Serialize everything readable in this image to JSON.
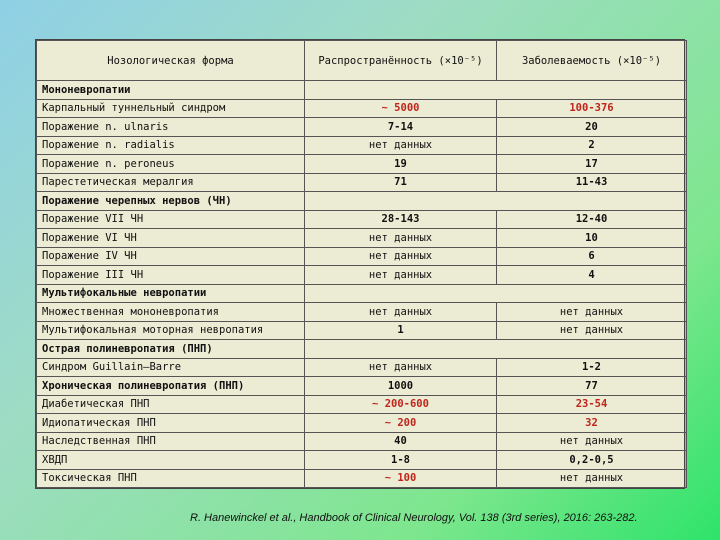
{
  "table": {
    "header": [
      "Нозологическая форма",
      "Распространённость (×10⁻⁵)",
      "Заболеваемость (×10⁻⁵)"
    ],
    "rows": [
      {
        "type": "section",
        "label": "Мононевропатии"
      },
      {
        "type": "row",
        "label": "Карпальный туннельный синдром",
        "prev": "~ 5000",
        "inc": "100-376",
        "bold": true,
        "prevRed": true,
        "incRed": true
      },
      {
        "type": "row",
        "label": "Поражение n. ulnaris",
        "prev": "7-14",
        "inc": "20",
        "bold": true
      },
      {
        "type": "row",
        "label": "Поражение n. radialis",
        "prev": "нет данных",
        "inc": "2",
        "bold": true,
        "prevNormal": true
      },
      {
        "type": "row",
        "label": "Поражение n. peroneus",
        "prev": "19",
        "inc": "17",
        "bold": true
      },
      {
        "type": "row",
        "label": "Парестетическая мералгия",
        "prev": "71",
        "inc": "11-43",
        "bold": true
      },
      {
        "type": "section",
        "label": "Поражение черепных нервов (ЧН)"
      },
      {
        "type": "row",
        "label": "Поражение VII ЧН",
        "prev": "28-143",
        "inc": "12-40",
        "bold": true
      },
      {
        "type": "row",
        "label": "Поражение VI ЧН",
        "prev": "нет данных",
        "inc": "10",
        "bold": true,
        "prevNormal": true
      },
      {
        "type": "row",
        "label": "Поражение IV ЧН",
        "prev": "нет данных",
        "inc": "6",
        "bold": true,
        "prevNormal": true
      },
      {
        "type": "row",
        "label": "Поражение III ЧН",
        "prev": "нет данных",
        "inc": "4",
        "bold": true,
        "prevNormal": true
      },
      {
        "type": "section",
        "label": "Мультифокальные невропатии"
      },
      {
        "type": "row",
        "label": "Множественная мононевропатия",
        "prev": "нет данных",
        "inc": "нет данных"
      },
      {
        "type": "row",
        "label": "Мультифокальная моторная невропатия",
        "prev": "1",
        "inc": "нет данных",
        "prevBold": true
      },
      {
        "type": "section",
        "label": "Острая полиневропатия (ПНП)"
      },
      {
        "type": "row",
        "label": "Синдром Guillain–Barre",
        "prev": "нет данных",
        "inc": "1-2",
        "incBold": true
      },
      {
        "type": "row",
        "label": "Хроническая полиневропатия (ПНП)",
        "prev": "1000",
        "inc": "77",
        "bold": true,
        "labelBold": true
      },
      {
        "type": "row",
        "label": "Диабетическая ПНП",
        "prev": "~ 200-600",
        "inc": "23-54",
        "bold": true,
        "prevRed": true,
        "incRed": true
      },
      {
        "type": "row",
        "label": "Идиопатическая ПНП",
        "prev": "~ 200",
        "inc": "32",
        "bold": true,
        "prevRed": true,
        "incRed": true
      },
      {
        "type": "row",
        "label": "Наследственная ПНП",
        "prev": "40",
        "inc": "нет данных",
        "prevBold": true
      },
      {
        "type": "row",
        "label": "ХВДП",
        "prev": "1-8",
        "inc": "0,2-0,5",
        "bold": true
      },
      {
        "type": "row",
        "label": "Токсическая ПНП",
        "prev": "~ 100",
        "inc": "нет данных",
        "prevBold": true,
        "prevRed": true
      }
    ]
  },
  "citation": "R. Hanewinckel et al., Handbook of Clinical Neurology, Vol. 138 (3rd series), 2016: 263-282.",
  "colors": {
    "red": "#c0241b",
    "tableBg": "#ecebd4"
  }
}
